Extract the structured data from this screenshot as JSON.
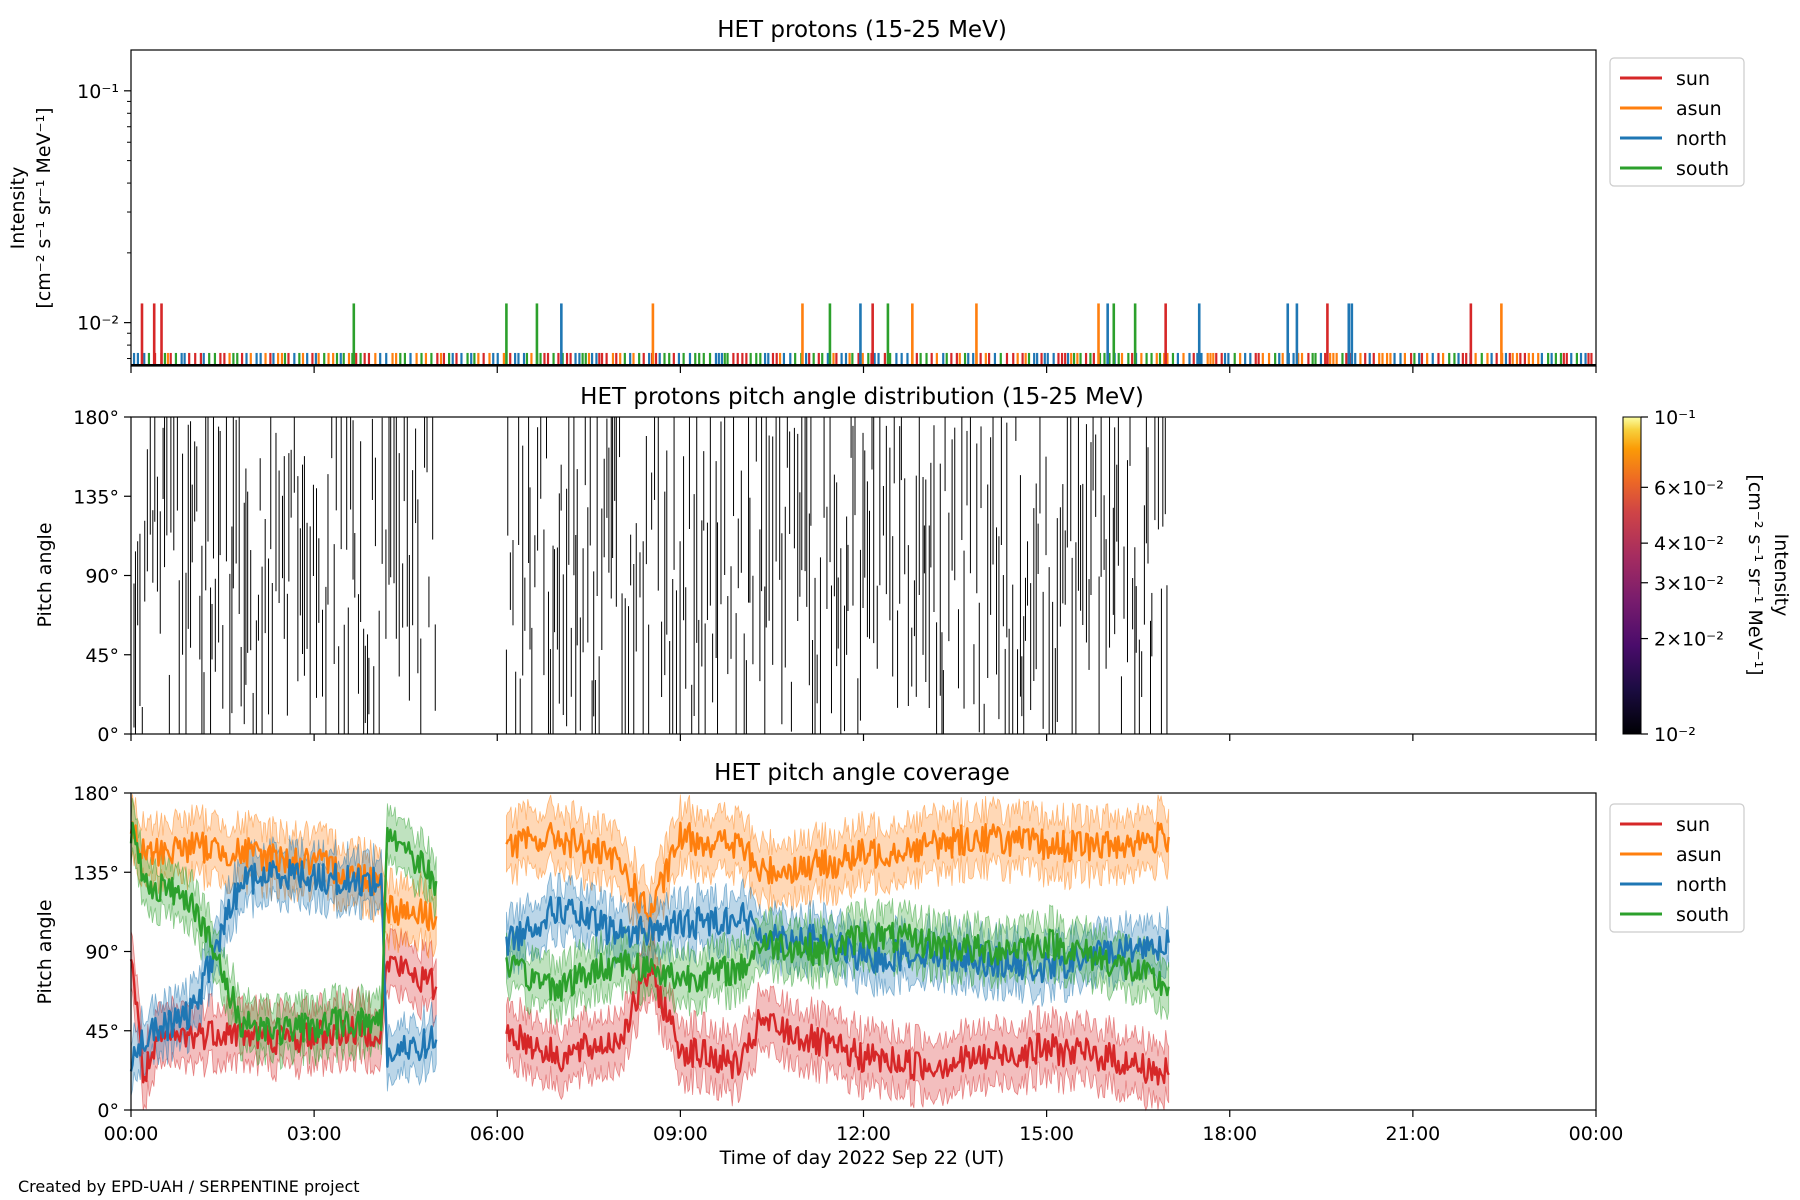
{
  "footer": {
    "credit": "Created by EPD-UAH / SERPENTINE project"
  },
  "colors": {
    "sun": "#d62728",
    "asun": "#ff7f0e",
    "north": "#1f77b4",
    "south": "#2ca02c"
  },
  "chart_data": [
    {
      "type": "bar",
      "title": "HET protons (15-25 MeV)",
      "ylabel_line1": "Intensity",
      "ylabel_line2": "[cm⁻² s⁻¹ sr⁻¹ MeV⁻¹]",
      "yscale": "log",
      "ylim": [
        0.0065,
        0.15
      ],
      "yticks": [
        {
          "value": 0.1,
          "label": "10⁻¹"
        },
        {
          "value": 0.01,
          "label": "10⁻²"
        }
      ],
      "xlim_hours": [
        0,
        24
      ],
      "baseline_value": 0.0065,
      "low_level_value": 0.0074,
      "low_level_span_hours": [
        0,
        24
      ],
      "spike_value": 0.0121,
      "legend": {
        "position": "right",
        "entries": [
          "sun",
          "asun",
          "north",
          "south"
        ]
      },
      "series": [
        {
          "name": "sun",
          "color": "#d62728",
          "spikes_hours": [
            0.18,
            0.38,
            0.5,
            12.15,
            16.95,
            19.6,
            21.95
          ]
        },
        {
          "name": "asun",
          "color": "#ff7f0e",
          "spikes_hours": [
            8.55,
            11.0,
            12.8,
            13.85,
            15.85,
            22.45
          ]
        },
        {
          "name": "north",
          "color": "#1f77b4",
          "spikes_hours": [
            7.05,
            11.95,
            16.0,
            17.5,
            18.95,
            19.1,
            19.95,
            20.0
          ]
        },
        {
          "name": "south",
          "color": "#2ca02c",
          "spikes_hours": [
            3.65,
            6.15,
            6.65,
            11.45,
            12.4,
            16.1,
            16.45
          ]
        }
      ]
    },
    {
      "type": "heatmap",
      "title": "HET protons pitch angle distribution (15-25 MeV)",
      "ylabel": "Pitch angle",
      "ylim": [
        0,
        180
      ],
      "yticks": [
        {
          "value": 0,
          "label": "0°"
        },
        {
          "value": 45,
          "label": "45°"
        },
        {
          "value": 90,
          "label": "90°"
        },
        {
          "value": 135,
          "label": "135°"
        },
        {
          "value": 180,
          "label": "180°"
        }
      ],
      "data_segments_hours": [
        [
          0.0,
          5.0
        ],
        [
          6.15,
          17.0
        ]
      ],
      "colorbar": {
        "label_line1": "Intensity",
        "label_line2": "[cm⁻² s⁻¹ sr⁻¹ MeV⁻¹]",
        "scale": "log",
        "range": [
          0.01,
          0.1
        ],
        "ticks": [
          {
            "value": 0.1,
            "label": "10⁻¹"
          },
          {
            "value": 0.06,
            "label": "6×10⁻²"
          },
          {
            "value": 0.04,
            "label": "4×10⁻²"
          },
          {
            "value": 0.03,
            "label": "3×10⁻²"
          },
          {
            "value": 0.02,
            "label": "2×10⁻²"
          },
          {
            "value": 0.01,
            "label": "10⁻²"
          }
        ]
      }
    },
    {
      "type": "line",
      "title": "HET pitch angle coverage",
      "ylabel": "Pitch angle",
      "xlabel": "Time of day 2022 Sep 22 (UT)",
      "ylim": [
        0,
        180
      ],
      "yticks": [
        {
          "value": 0,
          "label": "0°"
        },
        {
          "value": 45,
          "label": "45°"
        },
        {
          "value": 90,
          "label": "90°"
        },
        {
          "value": 135,
          "label": "135°"
        },
        {
          "value": 180,
          "label": "180°"
        }
      ],
      "xlim_hours": [
        0,
        24
      ],
      "xticks": [
        {
          "value": 0,
          "label": "00:00"
        },
        {
          "value": 3,
          "label": "03:00"
        },
        {
          "value": 6,
          "label": "06:00"
        },
        {
          "value": 9,
          "label": "09:00"
        },
        {
          "value": 12,
          "label": "12:00"
        },
        {
          "value": 15,
          "label": "15:00"
        },
        {
          "value": 18,
          "label": "18:00"
        },
        {
          "value": 21,
          "label": "21:00"
        },
        {
          "value": 24,
          "label": "00:00"
        }
      ],
      "legend": {
        "position": "right",
        "entries": [
          "sun",
          "asun",
          "north",
          "south"
        ]
      },
      "series": [
        {
          "name": "sun",
          "color": "#d62728",
          "band_half_width": 16,
          "segments": [
            [
              [
                0,
                90
              ],
              [
                0.2,
                20
              ],
              [
                0.5,
                40
              ],
              [
                1.5,
                45
              ],
              [
                2.5,
                40
              ],
              [
                3.5,
                45
              ],
              [
                4.1,
                45
              ],
              [
                4.2,
                85
              ],
              [
                5.0,
                70
              ]
            ],
            [
              [
                6.15,
                45
              ],
              [
                7.0,
                30
              ],
              [
                8.0,
                40
              ],
              [
                8.5,
                80
              ],
              [
                9.0,
                35
              ],
              [
                10.0,
                25
              ],
              [
                10.3,
                50
              ],
              [
                11.5,
                35
              ],
              [
                12.0,
                30
              ],
              [
                13.0,
                25
              ],
              [
                14.0,
                30
              ],
              [
                15.0,
                35
              ],
              [
                16.0,
                30
              ],
              [
                17.0,
                20
              ]
            ]
          ]
        },
        {
          "name": "asun",
          "color": "#ff7f0e",
          "band_half_width": 16,
          "segments": [
            [
              [
                0,
                160
              ],
              [
                0.2,
                145
              ],
              [
                1.0,
                150
              ],
              [
                2.0,
                145
              ],
              [
                3.0,
                140
              ],
              [
                4.1,
                130
              ],
              [
                4.2,
                115
              ],
              [
                5.0,
                110
              ]
            ],
            [
              [
                6.15,
                150
              ],
              [
                7.0,
                155
              ],
              [
                8.0,
                140
              ],
              [
                8.5,
                110
              ],
              [
                9.0,
                155
              ],
              [
                10.0,
                150
              ],
              [
                10.3,
                135
              ],
              [
                11.5,
                140
              ],
              [
                12.0,
                145
              ],
              [
                13.0,
                150
              ],
              [
                14.0,
                155
              ],
              [
                15.0,
                150
              ],
              [
                16.0,
                150
              ],
              [
                17.0,
                155
              ]
            ]
          ]
        },
        {
          "name": "north",
          "color": "#1f77b4",
          "band_half_width": 14,
          "segments": [
            [
              [
                0,
                30
              ],
              [
                0.2,
                40
              ],
              [
                1.0,
                55
              ],
              [
                1.8,
                130
              ],
              [
                2.5,
                135
              ],
              [
                3.5,
                130
              ],
              [
                4.1,
                130
              ],
              [
                4.2,
                30
              ],
              [
                5.0,
                40
              ]
            ],
            [
              [
                6.15,
                95
              ],
              [
                7.0,
                115
              ],
              [
                8.0,
                100
              ],
              [
                9.0,
                105
              ],
              [
                10.0,
                110
              ],
              [
                10.3,
                100
              ],
              [
                11.5,
                95
              ],
              [
                12.0,
                85
              ],
              [
                13.0,
                90
              ],
              [
                14.0,
                85
              ],
              [
                15.0,
                80
              ],
              [
                16.0,
                90
              ],
              [
                17.0,
                95
              ]
            ]
          ]
        },
        {
          "name": "south",
          "color": "#2ca02c",
          "band_half_width": 14,
          "segments": [
            [
              [
                0,
                160
              ],
              [
                0.2,
                130
              ],
              [
                1.0,
                120
              ],
              [
                1.8,
                50
              ],
              [
                2.5,
                45
              ],
              [
                3.5,
                50
              ],
              [
                4.1,
                50
              ],
              [
                4.2,
                160
              ],
              [
                5.0,
                130
              ]
            ],
            [
              [
                6.15,
                80
              ],
              [
                7.0,
                70
              ],
              [
                8.0,
                85
              ],
              [
                9.0,
                75
              ],
              [
                10.0,
                80
              ],
              [
                10.3,
                95
              ],
              [
                11.5,
                90
              ],
              [
                12.0,
                100
              ],
              [
                13.0,
                95
              ],
              [
                14.0,
                90
              ],
              [
                15.0,
                95
              ],
              [
                16.0,
                85
              ],
              [
                17.0,
                70
              ]
            ]
          ]
        }
      ]
    }
  ]
}
